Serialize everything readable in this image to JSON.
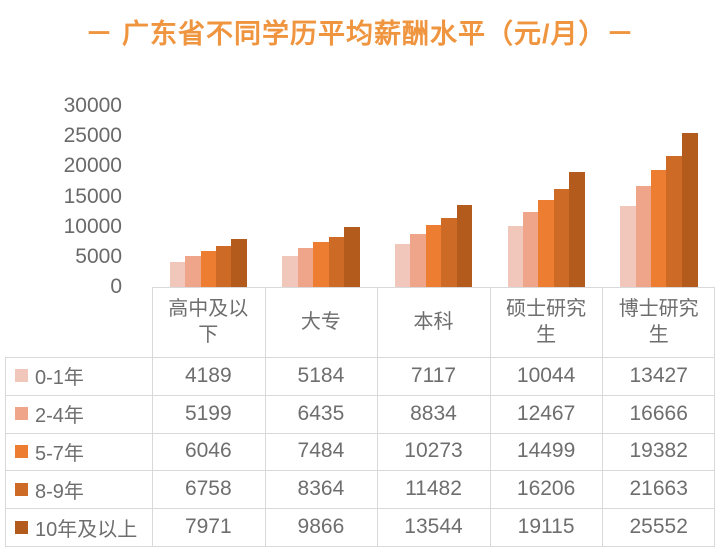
{
  "title": "－ 广东省不同学历平均薪酬水平（元/月）－",
  "colors": {
    "title": "#F0953F",
    "axis_text": "#6A6A6A",
    "table_text": "#6E6E6E",
    "border": "#D9D9D9",
    "series": [
      "#F1C7BB",
      "#EFA58A",
      "#ED7D31",
      "#CC6A26",
      "#B35A1D"
    ]
  },
  "chart_data": {
    "type": "bar",
    "title": "广东省不同学历平均薪酬水平（元/月）",
    "xlabel": "",
    "ylabel": "",
    "categories": [
      "高中及以下",
      "大专",
      "本科",
      "硕士研究生",
      "博士研究生"
    ],
    "series": [
      {
        "name": "0-1年",
        "values": [
          4189,
          5184,
          7117,
          10044,
          13427
        ]
      },
      {
        "name": "2-4年",
        "values": [
          5199,
          6435,
          8834,
          12467,
          16666
        ]
      },
      {
        "name": "5-7年",
        "values": [
          6046,
          7484,
          10273,
          14499,
          19382
        ]
      },
      {
        "name": "8-9年",
        "values": [
          6758,
          8364,
          11482,
          16206,
          21663
        ]
      },
      {
        "name": "10年及以上",
        "values": [
          7971,
          9866,
          13544,
          19115,
          25552
        ]
      }
    ],
    "ylim": [
      0,
      30000
    ],
    "yticks": [
      0,
      5000,
      10000,
      15000,
      20000,
      25000,
      30000
    ],
    "grid": false,
    "legend_position": "table-left",
    "data_table_shown": true
  }
}
